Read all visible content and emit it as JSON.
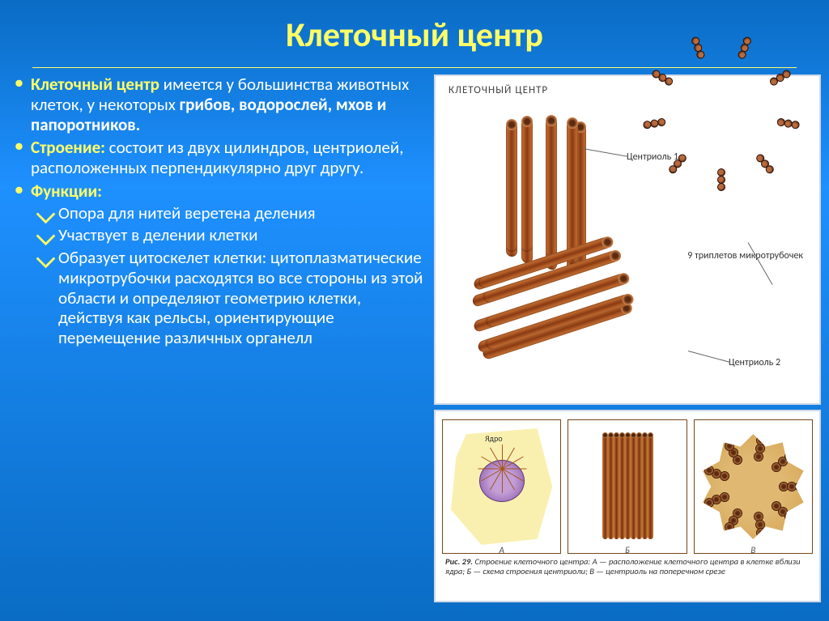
{
  "title": "Клеточный центр",
  "bullets": {
    "b1": {
      "lead": "Клеточный центр",
      "rest_a": " имеется у большинства животных клеток,  у некоторых ",
      "bold": "грибов, водорослей, мхов и папоротников.",
      "rest_b": ""
    },
    "b2": {
      "lead": "Строение:",
      "rest": " состоит из двух цилиндров, центриолей, расположенных перпендикулярно друг другу."
    },
    "b3": {
      "lead": "Функции:"
    }
  },
  "subs": {
    "s1": "Опора для нитей веретена деления",
    "s2": "Участвует в делении клетки",
    "s3": "Образует цитоскелет клетки: цитоплазматические микротрубочки расходятся во все стороны из этой области и определяют геометрию клетки, действуя как рельсы, ориентирующие перемещение различных органелл"
  },
  "diagram_top": {
    "title": "КЛЕТОЧНЫЙ ЦЕНТР",
    "ring_label": "9 триплетов микротрубочек",
    "c1": "Центриоль 1",
    "c2": "Центриоль 2",
    "triplet_count": 9,
    "tube_color_light": "#d17a3a",
    "tube_color_dark": "#8a3a12"
  },
  "diagram_bottom": {
    "nucleus_label": "Ядро",
    "labels": {
      "a": "А",
      "b": "Б",
      "c": "В"
    },
    "caption_lead": "Рис. 29.",
    "caption_title": "Строение клеточного центра: ",
    "caption_rest": "А — расположение клеточного центра в клетке вблизи ядра; Б — схема строения центриоли; В — центриоль на поперечном срезе"
  }
}
